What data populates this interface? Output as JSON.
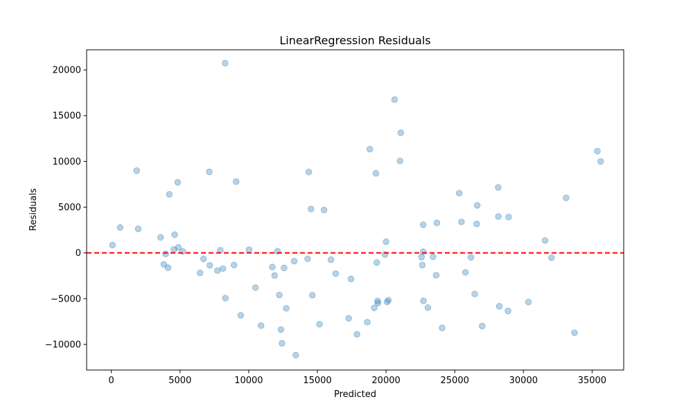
{
  "chart_data": {
    "type": "scatter",
    "title": "LinearRegression Residuals",
    "xlabel": "Predicted",
    "ylabel": "Residuals",
    "xlim": [
      -1800,
      37300
    ],
    "ylim": [
      -12800,
      22200
    ],
    "xticks": [
      0,
      5000,
      10000,
      15000,
      20000,
      25000,
      30000,
      35000
    ],
    "yticks": [
      -10000,
      -5000,
      0,
      5000,
      10000,
      15000,
      20000
    ],
    "reference_line": {
      "y": 0,
      "style": "dashed",
      "color": "#ff0000"
    },
    "point_color": "#1f77b4",
    "grid": false,
    "points": [
      [
        83,
        860
      ],
      [
        639,
        2780
      ],
      [
        1847,
        8990
      ],
      [
        1955,
        2630
      ],
      [
        3584,
        1700
      ],
      [
        3821,
        -1260
      ],
      [
        3958,
        -100
      ],
      [
        4125,
        -1620
      ],
      [
        4219,
        6400
      ],
      [
        4555,
        390
      ],
      [
        4610,
        1990
      ],
      [
        4827,
        7720
      ],
      [
        4882,
        600
      ],
      [
        5206,
        160
      ],
      [
        6461,
        -2180
      ],
      [
        6713,
        -650
      ],
      [
        7129,
        8860
      ],
      [
        7165,
        -1350
      ],
      [
        7723,
        -1930
      ],
      [
        7936,
        290
      ],
      [
        8122,
        -1710
      ],
      [
        8284,
        20740
      ],
      [
        8300,
        -4940
      ],
      [
        8931,
        -1320
      ],
      [
        9087,
        7800
      ],
      [
        9420,
        -6820
      ],
      [
        10023,
        350
      ],
      [
        10491,
        -3790
      ],
      [
        10901,
        -7950
      ],
      [
        11721,
        -1540
      ],
      [
        11886,
        -2470
      ],
      [
        12098,
        190
      ],
      [
        12228,
        -4590
      ],
      [
        12344,
        -8370
      ],
      [
        12420,
        -9880
      ],
      [
        12577,
        -1640
      ],
      [
        12731,
        -6060
      ],
      [
        13310,
        -900
      ],
      [
        13428,
        -11170
      ],
      [
        14289,
        -640
      ],
      [
        14375,
        8840
      ],
      [
        14534,
        4800
      ],
      [
        14636,
        -4620
      ],
      [
        15152,
        -7800
      ],
      [
        15487,
        4690
      ],
      [
        15989,
        -740
      ],
      [
        16332,
        -2260
      ],
      [
        17276,
        -7150
      ],
      [
        17446,
        -2840
      ],
      [
        17880,
        -8890
      ],
      [
        18630,
        -7570
      ],
      [
        18819,
        11340
      ],
      [
        19136,
        -6000
      ],
      [
        19259,
        8690
      ],
      [
        19326,
        -1050
      ],
      [
        19382,
        -5250
      ],
      [
        19405,
        -5480
      ],
      [
        19919,
        -170
      ],
      [
        19999,
        1230
      ],
      [
        20077,
        -5360
      ],
      [
        20169,
        -5160
      ],
      [
        20622,
        16760
      ],
      [
        21020,
        10050
      ],
      [
        21070,
        13130
      ],
      [
        22580,
        -460
      ],
      [
        22642,
        -1330
      ],
      [
        22701,
        3080
      ],
      [
        22701,
        130
      ],
      [
        22719,
        -5240
      ],
      [
        23041,
        -5970
      ],
      [
        23424,
        -430
      ],
      [
        23648,
        -2440
      ],
      [
        23700,
        3290
      ],
      [
        24076,
        -8190
      ],
      [
        25326,
        6540
      ],
      [
        25488,
        3390
      ],
      [
        25779,
        -2130
      ],
      [
        26180,
        -480
      ],
      [
        26455,
        -4480
      ],
      [
        26601,
        3170
      ],
      [
        26636,
        5200
      ],
      [
        26996,
        -7990
      ],
      [
        28165,
        7160
      ],
      [
        28176,
        3980
      ],
      [
        28246,
        -5830
      ],
      [
        28880,
        -6340
      ],
      [
        28920,
        3920
      ],
      [
        30367,
        -5370
      ],
      [
        31576,
        1360
      ],
      [
        32040,
        -520
      ],
      [
        33107,
        6020
      ],
      [
        33719,
        -8720
      ],
      [
        35383,
        11130
      ],
      [
        35620,
        10000
      ]
    ]
  }
}
